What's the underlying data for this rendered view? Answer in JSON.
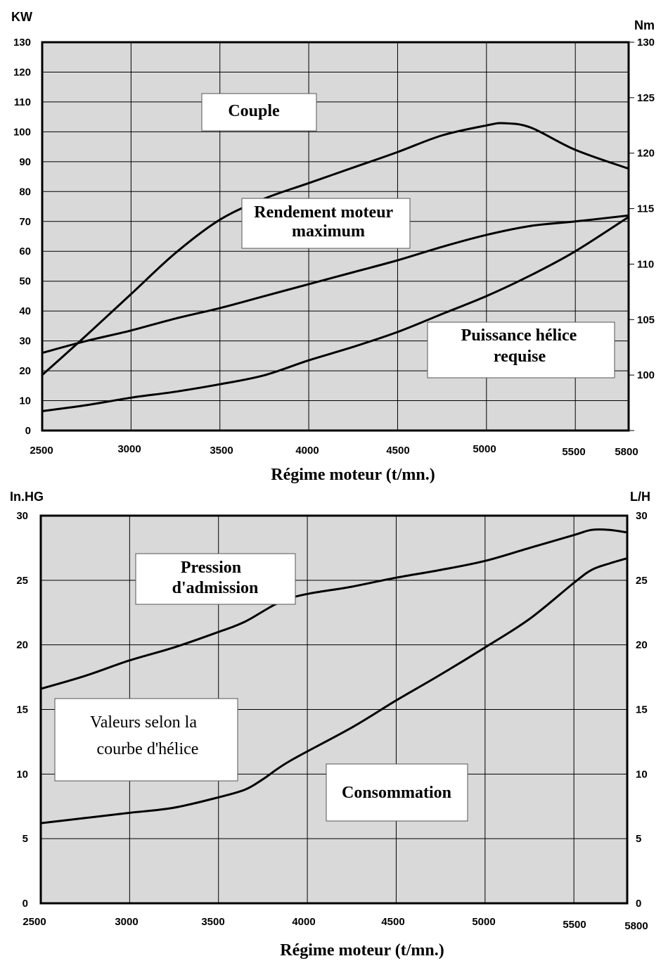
{
  "chart_data": [
    {
      "type": "line",
      "xlabel": "Régime moteur (t/mn.)",
      "y_left_unit": "KW",
      "y_right_unit": "Nm",
      "xlim": [
        2500,
        5800
      ],
      "ylim_left": [
        0,
        130
      ],
      "ylim_right": [
        95,
        130
      ],
      "x_ticks": [
        2500,
        3000,
        3500,
        4000,
        4500,
        5000,
        5500,
        5800
      ],
      "y_left_ticks": [
        0,
        10,
        20,
        30,
        40,
        50,
        60,
        70,
        80,
        90,
        100,
        110,
        120,
        130
      ],
      "y_right_ticks": [
        100,
        105,
        110,
        115,
        120,
        125,
        130
      ],
      "grid": true,
      "annotations": [
        "Couple",
        "Rendement moteur\nmaximum",
        "Puissance hélice\nrequise"
      ],
      "series": [
        {
          "name": "Couple",
          "axis": "right",
          "x": [
            2500,
            2750,
            3000,
            3250,
            3500,
            3750,
            4000,
            4250,
            4500,
            4750,
            5000,
            5100,
            5250,
            5500,
            5800
          ],
          "values": [
            100,
            103.6,
            107.3,
            111,
            114,
            115.9,
            117.3,
            118.7,
            120.1,
            121.6,
            122.5,
            122.7,
            122.3,
            120.3,
            118.6
          ]
        },
        {
          "name": "Rendement moteur maximum",
          "x": [
            2500,
            2750,
            3000,
            3250,
            3500,
            3750,
            4000,
            4250,
            4500,
            4750,
            5000,
            5250,
            5500,
            5800
          ],
          "values": [
            26,
            30,
            33.5,
            37.5,
            41,
            45,
            49,
            53,
            57,
            61.5,
            65.5,
            68.5,
            70,
            72
          ]
        },
        {
          "name": "Puissance hélice requise",
          "x": [
            2500,
            2750,
            3000,
            3250,
            3500,
            3750,
            4000,
            4250,
            4500,
            4750,
            5000,
            5250,
            5500,
            5800
          ],
          "values": [
            6.5,
            8.5,
            11,
            13,
            15.5,
            18.5,
            23.5,
            28,
            33,
            39,
            45,
            52,
            60,
            71.5
          ]
        }
      ]
    },
    {
      "type": "line",
      "xlabel": "Régime moteur (t/mn.)",
      "y_left_unit": "In.HG",
      "y_right_unit": "L/H",
      "xlim": [
        2500,
        5800
      ],
      "ylim_left": [
        0,
        30
      ],
      "ylim_right": [
        0,
        30
      ],
      "x_ticks": [
        2500,
        3000,
        3500,
        4000,
        4500,
        5000,
        5500,
        5800
      ],
      "y_left_ticks": [
        0,
        5,
        10,
        15,
        20,
        25,
        30
      ],
      "y_right_ticks": [
        0,
        5,
        10,
        15,
        20,
        25,
        30
      ],
      "grid": true,
      "annotations": [
        "Pression\nd'admission",
        "Valeurs selon la\ncourbe d'hélice",
        "Consommation"
      ],
      "series": [
        {
          "name": "Pression d'admission",
          "x": [
            2500,
            2750,
            3000,
            3250,
            3500,
            3650,
            3900,
            4250,
            4500,
            4750,
            5000,
            5250,
            5500,
            5600,
            5700,
            5800
          ],
          "values": [
            16.6,
            17.6,
            18.8,
            19.8,
            21,
            21.8,
            23.6,
            24.5,
            25.2,
            25.8,
            26.5,
            27.5,
            28.5,
            28.9,
            28.9,
            28.7
          ]
        },
        {
          "name": "Consommation",
          "x": [
            2500,
            2750,
            3000,
            3250,
            3500,
            3650,
            3750,
            3900,
            4250,
            4500,
            4750,
            5000,
            5250,
            5500,
            5600,
            5700,
            5800
          ],
          "values": [
            6.2,
            6.6,
            7,
            7.4,
            8.2,
            8.8,
            9.6,
            11,
            13.6,
            15.7,
            17.7,
            19.8,
            22,
            24.8,
            25.8,
            26.3,
            26.7
          ]
        }
      ]
    }
  ]
}
